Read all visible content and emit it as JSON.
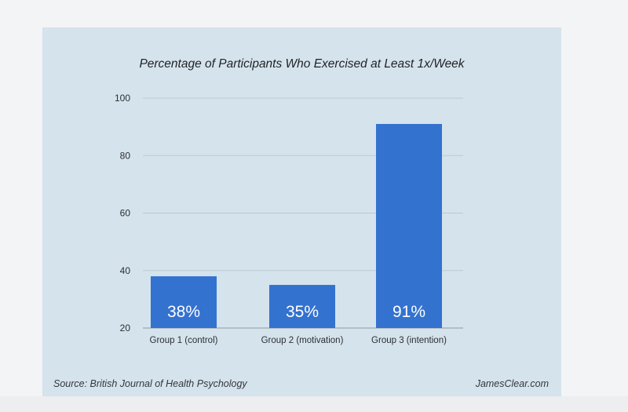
{
  "chart_data": {
    "type": "bar",
    "title": "Percentage of Participants Who Exercised at Least 1x/Week",
    "categories": [
      "Group 1 (control)",
      "Group 2 (motivation)",
      "Group 3 (intention)"
    ],
    "values": [
      38,
      35,
      91
    ],
    "data_labels": [
      "38%",
      "35%",
      "91%"
    ],
    "yticks": [
      20,
      40,
      60,
      80,
      100
    ],
    "ylim": [
      20,
      100
    ],
    "xlabel": "",
    "ylabel": "",
    "grid": true,
    "bar_color": "#3372cf"
  },
  "footer": {
    "source": "Source: British Journal of Health Psychology",
    "site": "JamesClear.com"
  },
  "colors": {
    "panel": "#d5e3ec",
    "grid": "#bcc9d2"
  }
}
